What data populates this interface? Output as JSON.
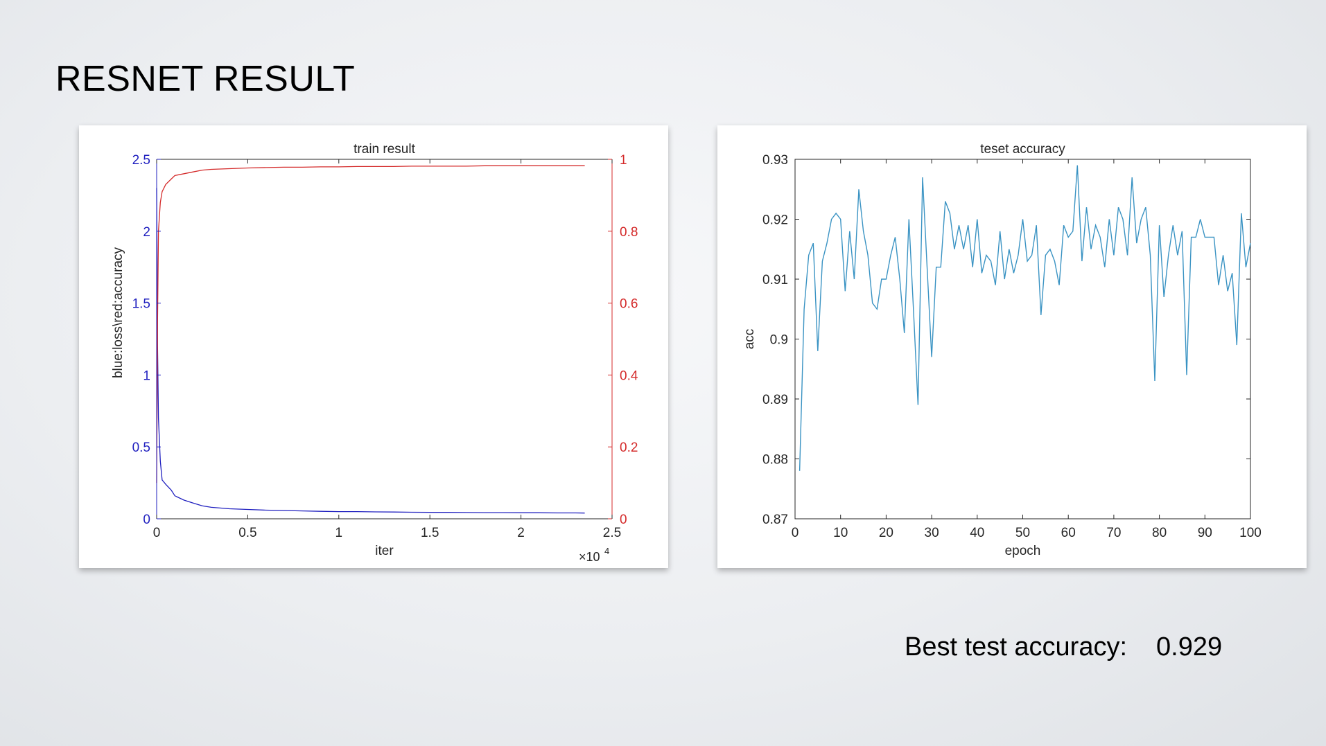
{
  "slide": {
    "title": "RESNET RESULT",
    "best_label": "Best test accuracy:",
    "best_value": "0.929"
  },
  "colors": {
    "loss": "#1f1fbf",
    "accuracy": "#d42a2a",
    "test_line": "#3a93c3",
    "axis": "#262626"
  },
  "chart_data": [
    {
      "type": "line",
      "title": "train result",
      "xlabel": "iter",
      "ylabel": "blue:loss\\red:accuracy",
      "x_exponent_label": "×10",
      "x_exponent": "4",
      "xlim": [
        0,
        25000
      ],
      "ylim_left": [
        0,
        2.5
      ],
      "ylim_right": [
        0,
        1
      ],
      "x_ticks": [
        0,
        5000,
        10000,
        15000,
        20000,
        25000
      ],
      "x_tick_labels": [
        "0",
        "0.5",
        "1",
        "1.5",
        "2",
        "2.5"
      ],
      "y_left_ticks": [
        0,
        0.5,
        1,
        1.5,
        2,
        2.5
      ],
      "y_left_tick_labels": [
        "0",
        "0.5",
        "1",
        "1.5",
        "2",
        "2.5"
      ],
      "y_right_ticks": [
        0,
        0.2,
        0.4,
        0.6,
        0.8,
        1
      ],
      "y_right_tick_labels": [
        "0",
        "0.2",
        "0.4",
        "0.6",
        "0.8",
        "1"
      ],
      "grid": false,
      "series": [
        {
          "axis": "left",
          "x": [
            0,
            50,
            100,
            200,
            300,
            500,
            800,
            1000,
            1500,
            2000,
            2500,
            3000,
            4000,
            5000,
            6000,
            7000,
            8000,
            9000,
            10000,
            11000,
            12000,
            13000,
            14000,
            15000,
            16000,
            17000,
            18000,
            19000,
            20000,
            21000,
            22000,
            23000,
            23500
          ],
          "values": [
            2.3,
            1.2,
            0.7,
            0.4,
            0.27,
            0.24,
            0.2,
            0.16,
            0.13,
            0.11,
            0.09,
            0.08,
            0.07,
            0.065,
            0.06,
            0.058,
            0.055,
            0.052,
            0.05,
            0.05,
            0.048,
            0.047,
            0.046,
            0.045,
            0.045,
            0.044,
            0.043,
            0.043,
            0.042,
            0.042,
            0.041,
            0.041,
            0.04
          ]
        },
        {
          "axis": "right",
          "x": [
            0,
            50,
            100,
            200,
            300,
            500,
            800,
            1000,
            1500,
            2000,
            2500,
            3000,
            4000,
            5000,
            6000,
            7000,
            8000,
            9000,
            10000,
            11000,
            12000,
            13000,
            14000,
            15000,
            16000,
            17000,
            18000,
            19000,
            20000,
            21000,
            22000,
            23000,
            23500
          ],
          "values": [
            0.1,
            0.55,
            0.8,
            0.88,
            0.91,
            0.93,
            0.945,
            0.955,
            0.96,
            0.965,
            0.97,
            0.972,
            0.974,
            0.976,
            0.977,
            0.978,
            0.978,
            0.979,
            0.979,
            0.98,
            0.98,
            0.98,
            0.981,
            0.981,
            0.981,
            0.981,
            0.982,
            0.982,
            0.982,
            0.982,
            0.982,
            0.982,
            0.982
          ]
        }
      ]
    },
    {
      "type": "line",
      "title": "teset accuracy",
      "xlabel": "epoch",
      "ylabel": "acc",
      "xlim": [
        0,
        100
      ],
      "ylim": [
        0.87,
        0.93
      ],
      "x_ticks": [
        0,
        10,
        20,
        30,
        40,
        50,
        60,
        70,
        80,
        90,
        100
      ],
      "x_tick_labels": [
        "0",
        "10",
        "20",
        "30",
        "40",
        "50",
        "60",
        "70",
        "80",
        "90",
        "100"
      ],
      "y_ticks": [
        0.87,
        0.88,
        0.89,
        0.9,
        0.91,
        0.92,
        0.93
      ],
      "y_tick_labels": [
        "0.87",
        "0.88",
        "0.89",
        "0.9",
        "0.91",
        "0.92",
        "0.93"
      ],
      "grid": false,
      "series": [
        {
          "x": [
            1,
            2,
            3,
            4,
            5,
            6,
            7,
            8,
            9,
            10,
            11,
            12,
            13,
            14,
            15,
            16,
            17,
            18,
            19,
            20,
            21,
            22,
            23,
            24,
            25,
            26,
            27,
            28,
            29,
            30,
            31,
            32,
            33,
            34,
            35,
            36,
            37,
            38,
            39,
            40,
            41,
            42,
            43,
            44,
            45,
            46,
            47,
            48,
            49,
            50,
            51,
            52,
            53,
            54,
            55,
            56,
            57,
            58,
            59,
            60,
            61,
            62,
            63,
            64,
            65,
            66,
            67,
            68,
            69,
            70,
            71,
            72,
            73,
            74,
            75,
            76,
            77,
            78,
            79,
            80,
            81,
            82,
            83,
            84,
            85,
            86,
            87,
            88,
            89,
            90,
            91,
            92,
            93,
            94,
            95,
            96,
            97,
            98,
            99,
            100
          ],
          "values": [
            0.878,
            0.905,
            0.914,
            0.916,
            0.898,
            0.913,
            0.916,
            0.92,
            0.921,
            0.92,
            0.908,
            0.918,
            0.91,
            0.925,
            0.918,
            0.914,
            0.906,
            0.905,
            0.91,
            0.91,
            0.914,
            0.917,
            0.91,
            0.901,
            0.92,
            0.905,
            0.889,
            0.927,
            0.912,
            0.897,
            0.912,
            0.912,
            0.923,
            0.921,
            0.915,
            0.919,
            0.915,
            0.919,
            0.912,
            0.92,
            0.911,
            0.914,
            0.913,
            0.909,
            0.918,
            0.91,
            0.915,
            0.911,
            0.914,
            0.92,
            0.913,
            0.914,
            0.919,
            0.904,
            0.914,
            0.915,
            0.913,
            0.909,
            0.919,
            0.917,
            0.918,
            0.929,
            0.913,
            0.922,
            0.915,
            0.919,
            0.917,
            0.912,
            0.92,
            0.914,
            0.922,
            0.92,
            0.914,
            0.927,
            0.916,
            0.92,
            0.922,
            0.914,
            0.893,
            0.919,
            0.907,
            0.914,
            0.919,
            0.914,
            0.918,
            0.894,
            0.917,
            0.917,
            0.92,
            0.917,
            0.917,
            0.917,
            0.909,
            0.914,
            0.908,
            0.911,
            0.899,
            0.921,
            0.912,
            0.916
          ]
        }
      ]
    }
  ]
}
